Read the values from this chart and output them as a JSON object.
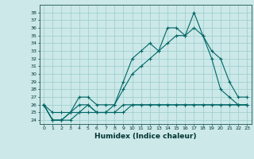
{
  "xlabel": "Humidex (Indice chaleur)",
  "ylabel": "",
  "background_color": "#cce8e8",
  "grid_color": "#99cccc",
  "line_color": "#006666",
  "xlim": [
    -0.5,
    23.5
  ],
  "ylim": [
    23.5,
    39
  ],
  "xticks": [
    0,
    1,
    2,
    3,
    4,
    5,
    6,
    7,
    8,
    9,
    10,
    11,
    12,
    13,
    14,
    15,
    16,
    17,
    18,
    19,
    20,
    21,
    22,
    23
  ],
  "yticks": [
    24,
    25,
    26,
    27,
    28,
    29,
    30,
    31,
    32,
    33,
    34,
    35,
    36,
    37,
    38
  ],
  "series": [
    [
      26,
      24,
      24,
      25,
      27,
      27,
      26,
      26,
      26,
      29,
      32,
      33,
      34,
      33,
      36,
      36,
      35,
      38,
      35,
      33,
      32,
      29,
      27,
      27
    ],
    [
      26,
      24,
      24,
      25,
      26,
      26,
      25,
      25,
      26,
      28,
      30,
      31,
      32,
      33,
      34,
      35,
      35,
      36,
      35,
      32,
      28,
      27,
      26,
      26
    ],
    [
      26,
      24,
      24,
      24,
      25,
      25,
      25,
      25,
      25,
      25,
      26,
      26,
      26,
      26,
      26,
      26,
      26,
      26,
      26,
      26,
      26,
      26,
      26,
      26
    ],
    [
      26,
      25,
      25,
      25,
      25,
      26,
      25,
      25,
      25,
      26,
      26,
      26,
      26,
      26,
      26,
      26,
      26,
      26,
      26,
      26,
      26,
      26,
      26,
      26
    ]
  ]
}
